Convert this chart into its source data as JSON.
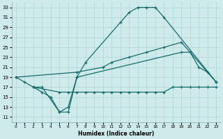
{
  "xlabel": "Humidex (Indice chaleur)",
  "bg_color": "#ceeaea",
  "grid_color": "#aed4d4",
  "line_color": "#1a6b6b",
  "xlim": [
    -0.5,
    23.5
  ],
  "ylim": [
    10,
    34
  ],
  "yticks": [
    11,
    13,
    15,
    17,
    19,
    21,
    23,
    25,
    27,
    29,
    31,
    33
  ],
  "xticks": [
    0,
    1,
    2,
    3,
    4,
    5,
    6,
    7,
    8,
    9,
    10,
    11,
    12,
    13,
    14,
    15,
    16,
    17,
    18,
    19,
    20,
    21,
    22,
    23
  ],
  "curves": [
    {
      "x": [
        0,
        1,
        2,
        3,
        5,
        6,
        7,
        8,
        12,
        13,
        14,
        15,
        16,
        17,
        23
      ],
      "y": [
        19,
        18,
        17,
        17,
        12,
        12,
        19,
        22,
        30,
        32,
        33,
        33,
        33,
        31,
        18
      ]
    },
    {
      "x": [
        2,
        3,
        4,
        5,
        6,
        7,
        19,
        20,
        21,
        22,
        23
      ],
      "y": [
        17,
        16,
        15,
        12,
        13,
        19,
        24,
        24,
        21,
        20,
        18
      ]
    },
    {
      "x": [
        0,
        7,
        10,
        11,
        13,
        15,
        17,
        19,
        23
      ],
      "y": [
        19,
        20,
        21,
        22,
        23,
        24,
        25,
        26,
        18
      ]
    },
    {
      "x": [
        2,
        5,
        6,
        7,
        8,
        9,
        10,
        11,
        12,
        13,
        14,
        15,
        16,
        17,
        18,
        19,
        20,
        21,
        22,
        23
      ],
      "y": [
        17,
        16,
        16,
        16,
        16,
        16,
        16,
        16,
        16,
        16,
        16,
        16,
        16,
        16,
        17,
        17,
        17,
        17,
        17,
        17
      ]
    }
  ]
}
